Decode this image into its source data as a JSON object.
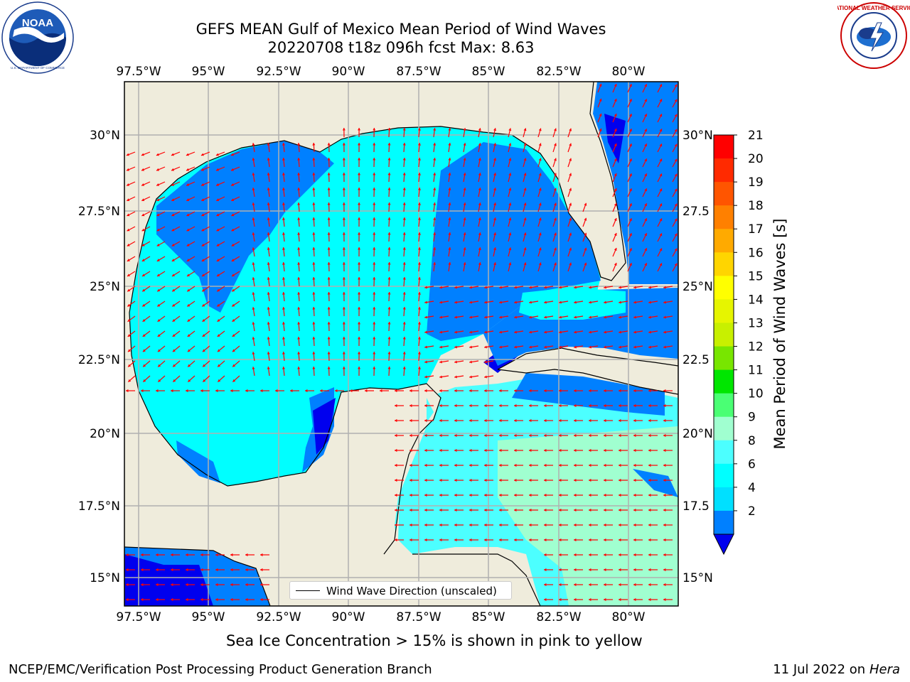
{
  "header": {
    "title_line1": "GEFS MEAN Gulf of Mexico Mean Period of Wind Waves",
    "title_line2": "20220708 t18z 096h fcst   Max: 8.63"
  },
  "logos": {
    "left": {
      "name": "noaa-logo",
      "text": "NOAA",
      "ring_top": "NATIONAL OCEANIC AND ATMOSPHERIC ADMINISTRATION",
      "ring_bottom": "U.S. DEPARTMENT OF COMMERCE"
    },
    "right": {
      "name": "nws-logo",
      "ring_text": "NATIONAL WEATHER SERVICE"
    }
  },
  "map": {
    "lon_ticks": [
      "97.5°W",
      "95°W",
      "92.5°W",
      "90°W",
      "87.5°W",
      "85°W",
      "82.5°W",
      "80°W"
    ],
    "lat_ticks": [
      "30°N",
      "27.5°N",
      "25°N",
      "22.5°N",
      "20°N",
      "17.5°N",
      "15°N"
    ],
    "lat_ticks_right": [
      "30°N",
      "27.5",
      "25°N",
      "22.5",
      "20°N",
      "17.5",
      "15°N"
    ],
    "land_color": "#efecdc",
    "vector_color": "#ff0000",
    "legend_label": "Wind Wave Direction (unscaled)"
  },
  "colorbar": {
    "label": "Mean Period of Wind Waves [s]",
    "ticks": [
      "21",
      "20",
      "19",
      "18",
      "17",
      "16",
      "15",
      "14",
      "13",
      "12",
      "11",
      "10",
      "9",
      "8",
      "6",
      "4",
      "2"
    ],
    "colors": [
      "#ff0000",
      "#ff2a00",
      "#ff5500",
      "#ff8000",
      "#ffaa00",
      "#ffd500",
      "#ffff00",
      "#e6f500",
      "#c8f000",
      "#78e600",
      "#00e600",
      "#4aff74",
      "#a0ffd0",
      "#4cffff",
      "#00ffff",
      "#00e0ff",
      "#0080ff"
    ],
    "under_color": "#0000ee"
  },
  "notes": {
    "ice_note": "Sea Ice Concentration > 15% is shown in pink to yellow"
  },
  "footer": {
    "left": "NCEP/EMC/Verification Post Processing Product Generation Branch",
    "right_prefix": "11 Jul 2022 on ",
    "right_host": "Hera"
  }
}
